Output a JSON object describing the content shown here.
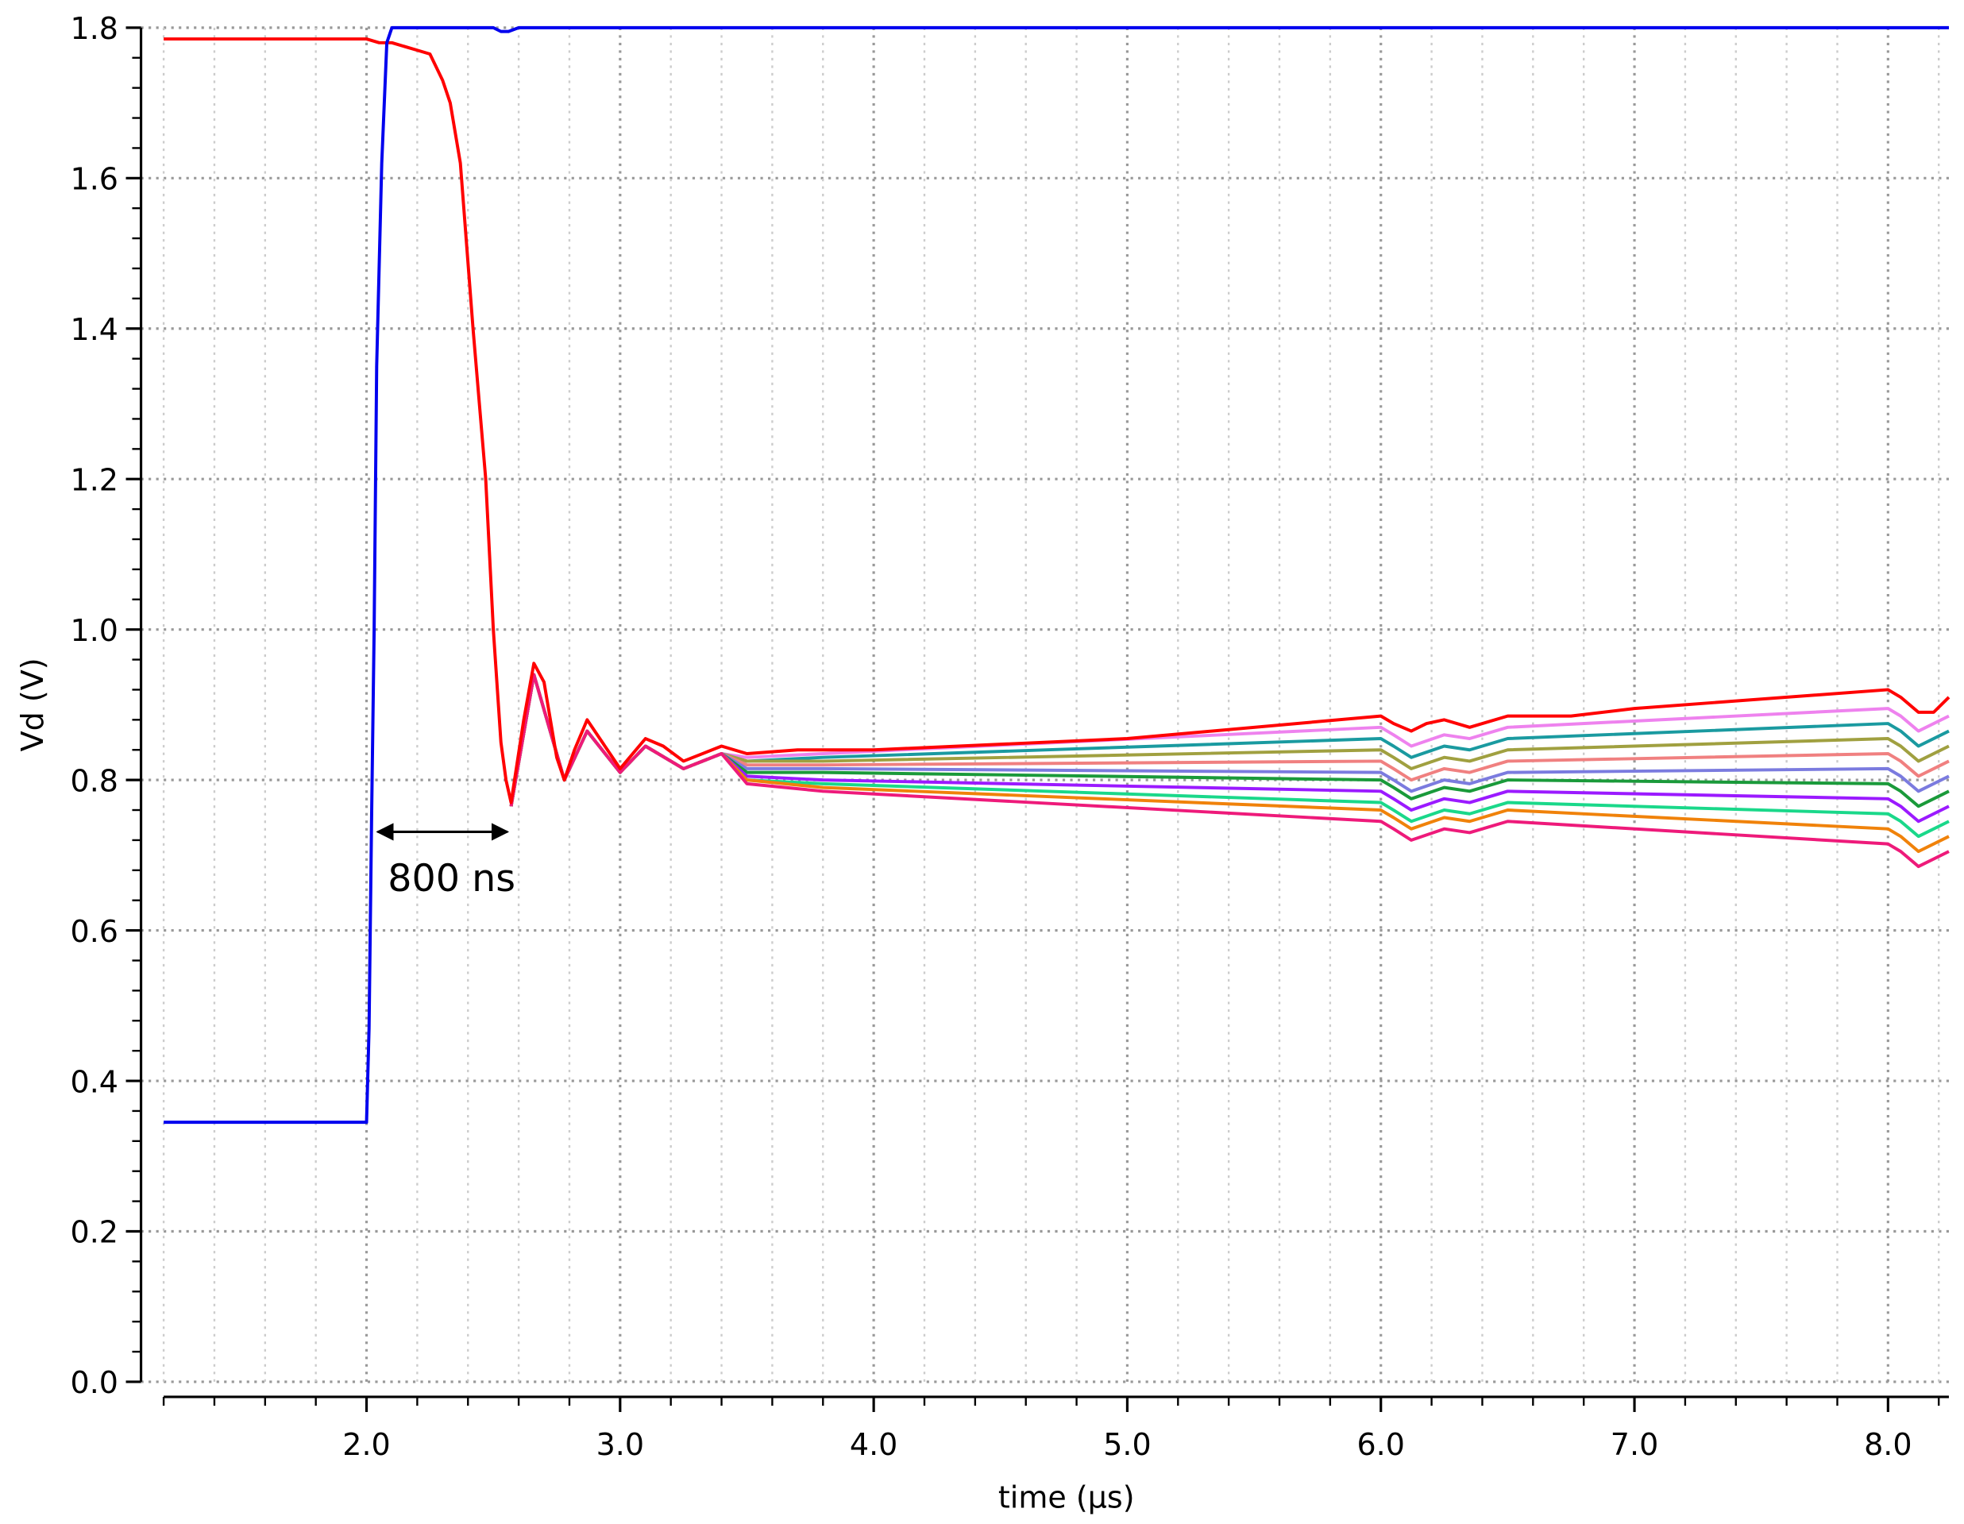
{
  "chart_data": {
    "type": "line",
    "xlabel": "time (µs)",
    "ylabel": "Vd (V)",
    "annotation": "800 ns",
    "xlim": [
      1.2,
      8.24
    ],
    "ylim": [
      0,
      1.8
    ],
    "grid": true,
    "xticks": [
      {
        "value": 2,
        "label": "2.0"
      },
      {
        "value": 3,
        "label": "3.0"
      },
      {
        "value": 4,
        "label": "4.0"
      },
      {
        "value": 5,
        "label": "5.0"
      },
      {
        "value": 6,
        "label": "6.0"
      },
      {
        "value": 7,
        "label": "7.0"
      },
      {
        "value": 8,
        "label": "8.0"
      }
    ],
    "xminorticks": [
      1.2,
      1.4,
      1.6,
      1.8,
      2.2,
      2.4,
      2.6,
      2.8,
      3.2,
      3.4,
      3.6,
      3.8,
      4.2,
      4.4,
      4.6,
      4.8,
      5.2,
      5.4,
      5.6,
      5.8,
      6.2,
      6.4,
      6.6,
      6.8,
      7.2,
      7.4,
      7.6,
      7.8,
      8.2
    ],
    "yticks": [
      {
        "value": 0,
        "label": "0.0"
      },
      {
        "value": 0.2,
        "label": "0.2"
      },
      {
        "value": 0.4,
        "label": "0.4"
      },
      {
        "value": 0.6,
        "label": "0.6"
      },
      {
        "value": 0.8,
        "label": "0.8"
      },
      {
        "value": 1,
        "label": "1.0"
      },
      {
        "value": 1.2,
        "label": "1.2"
      },
      {
        "value": 1.4,
        "label": "1.4"
      },
      {
        "value": 1.6,
        "label": "1.6"
      },
      {
        "value": 1.8,
        "label": "1.8"
      }
    ],
    "yminorticks": [
      0.04,
      0.08,
      0.12,
      0.16,
      0.24,
      0.28,
      0.32,
      0.36,
      0.44,
      0.48,
      0.52,
      0.56,
      0.64,
      0.68,
      0.72,
      0.76,
      0.84,
      0.88,
      0.92,
      0.96,
      1.04,
      1.08,
      1.12,
      1.16,
      1.24,
      1.28,
      1.32,
      1.36,
      1.44,
      1.48,
      1.52,
      1.56,
      1.64,
      1.68,
      1.72,
      1.76
    ],
    "series": [
      {
        "color": "#ee82ee",
        "x": [
          2.57,
          2.66,
          2.72,
          2.78,
          2.87,
          3.0,
          3.1,
          3.25,
          3.4,
          3.5,
          3.8,
          6.0,
          6.05,
          6.12,
          6.25,
          6.35,
          6.5,
          8.0,
          8.05,
          8.12,
          8.24
        ],
        "values": [
          0.765,
          0.94,
          0.87,
          0.8,
          0.865,
          0.81,
          0.845,
          0.815,
          0.835,
          0.83,
          0.835,
          0.87,
          0.86,
          0.845,
          0.86,
          0.855,
          0.87,
          0.895,
          0.885,
          0.865,
          0.885
        ]
      },
      {
        "color": "#1a9aa0",
        "x": [
          2.57,
          2.66,
          2.72,
          2.78,
          2.87,
          3.0,
          3.1,
          3.25,
          3.4,
          3.5,
          3.8,
          6.0,
          6.05,
          6.12,
          6.25,
          6.35,
          6.5,
          8.0,
          8.05,
          8.12,
          8.24
        ],
        "values": [
          0.765,
          0.94,
          0.87,
          0.8,
          0.865,
          0.81,
          0.845,
          0.815,
          0.835,
          0.825,
          0.83,
          0.855,
          0.845,
          0.83,
          0.845,
          0.84,
          0.855,
          0.875,
          0.865,
          0.845,
          0.865
        ]
      },
      {
        "color": "#a0a040",
        "x": [
          2.57,
          2.66,
          2.72,
          2.78,
          2.87,
          3.0,
          3.1,
          3.25,
          3.4,
          3.5,
          3.8,
          6.0,
          6.05,
          6.12,
          6.25,
          6.35,
          6.5,
          8.0,
          8.05,
          8.12,
          8.24
        ],
        "values": [
          0.765,
          0.94,
          0.87,
          0.8,
          0.865,
          0.81,
          0.845,
          0.815,
          0.835,
          0.825,
          0.825,
          0.84,
          0.83,
          0.815,
          0.83,
          0.825,
          0.84,
          0.855,
          0.845,
          0.825,
          0.845
        ]
      },
      {
        "color": "#f08080",
        "x": [
          2.57,
          2.66,
          2.72,
          2.78,
          2.87,
          3.0,
          3.1,
          3.25,
          3.4,
          3.5,
          3.8,
          6.0,
          6.05,
          6.12,
          6.25,
          6.35,
          6.5,
          8.0,
          8.05,
          8.12,
          8.24
        ],
        "values": [
          0.765,
          0.94,
          0.87,
          0.8,
          0.865,
          0.81,
          0.845,
          0.815,
          0.835,
          0.82,
          0.82,
          0.825,
          0.815,
          0.8,
          0.815,
          0.81,
          0.825,
          0.835,
          0.825,
          0.805,
          0.825
        ]
      },
      {
        "color": "#7b7bdf",
        "x": [
          2.57,
          2.66,
          2.72,
          2.78,
          2.87,
          3.0,
          3.1,
          3.25,
          3.4,
          3.5,
          3.8,
          6.0,
          6.05,
          6.12,
          6.25,
          6.35,
          6.5,
          8.0,
          8.05,
          8.12,
          8.24
        ],
        "values": [
          0.765,
          0.94,
          0.87,
          0.8,
          0.865,
          0.81,
          0.845,
          0.815,
          0.835,
          0.815,
          0.815,
          0.81,
          0.8,
          0.785,
          0.8,
          0.795,
          0.81,
          0.815,
          0.805,
          0.785,
          0.805
        ]
      },
      {
        "color": "#1a9a3a",
        "x": [
          2.57,
          2.66,
          2.72,
          2.78,
          2.87,
          3.0,
          3.1,
          3.25,
          3.4,
          3.5,
          3.8,
          6.0,
          6.05,
          6.12,
          6.25,
          6.35,
          6.5,
          8.0,
          8.05,
          8.12,
          8.24
        ],
        "values": [
          0.765,
          0.94,
          0.87,
          0.8,
          0.865,
          0.81,
          0.845,
          0.815,
          0.835,
          0.81,
          0.81,
          0.8,
          0.79,
          0.775,
          0.79,
          0.785,
          0.8,
          0.795,
          0.785,
          0.765,
          0.785
        ]
      },
      {
        "color": "#9b1aff",
        "x": [
          2.57,
          2.66,
          2.72,
          2.78,
          2.87,
          3.0,
          3.1,
          3.25,
          3.4,
          3.5,
          3.8,
          6.0,
          6.05,
          6.12,
          6.25,
          6.35,
          6.5,
          8.0,
          8.05,
          8.12,
          8.24
        ],
        "values": [
          0.765,
          0.94,
          0.87,
          0.8,
          0.865,
          0.81,
          0.845,
          0.815,
          0.835,
          0.805,
          0.8,
          0.785,
          0.775,
          0.76,
          0.775,
          0.77,
          0.785,
          0.775,
          0.765,
          0.745,
          0.765
        ]
      },
      {
        "color": "#1ad88a",
        "x": [
          2.57,
          2.66,
          2.72,
          2.78,
          2.87,
          3.0,
          3.1,
          3.25,
          3.4,
          3.5,
          3.8,
          6.0,
          6.05,
          6.12,
          6.25,
          6.35,
          6.5,
          8.0,
          8.05,
          8.12,
          8.24
        ],
        "values": [
          0.765,
          0.94,
          0.87,
          0.8,
          0.865,
          0.81,
          0.845,
          0.815,
          0.835,
          0.8,
          0.795,
          0.77,
          0.76,
          0.745,
          0.76,
          0.755,
          0.77,
          0.755,
          0.745,
          0.725,
          0.745
        ]
      },
      {
        "color": "#f0820a",
        "x": [
          2.57,
          2.66,
          2.72,
          2.78,
          2.87,
          3.0,
          3.1,
          3.25,
          3.4,
          3.5,
          3.8,
          6.0,
          6.05,
          6.12,
          6.25,
          6.35,
          6.5,
          8.0,
          8.05,
          8.12,
          8.24
        ],
        "values": [
          0.765,
          0.94,
          0.87,
          0.8,
          0.865,
          0.81,
          0.845,
          0.815,
          0.835,
          0.8,
          0.79,
          0.76,
          0.75,
          0.735,
          0.75,
          0.745,
          0.76,
          0.735,
          0.725,
          0.705,
          0.725
        ]
      },
      {
        "color": "#ee1a7a",
        "x": [
          2.57,
          2.66,
          2.72,
          2.78,
          2.87,
          3.0,
          3.1,
          3.25,
          3.4,
          3.5,
          3.8,
          6.0,
          6.05,
          6.12,
          6.25,
          6.35,
          6.5,
          8.0,
          8.05,
          8.12,
          8.24
        ],
        "values": [
          0.765,
          0.94,
          0.87,
          0.8,
          0.865,
          0.81,
          0.845,
          0.815,
          0.835,
          0.795,
          0.785,
          0.745,
          0.735,
          0.72,
          0.735,
          0.73,
          0.745,
          0.715,
          0.705,
          0.685,
          0.705
        ]
      },
      {
        "color": "#ff0000",
        "x": [
          1.2,
          2.0,
          2.05,
          2.1,
          2.2,
          2.25,
          2.3,
          2.33,
          2.37,
          2.42,
          2.47,
          2.5,
          2.53,
          2.55,
          2.57,
          2.62,
          2.66,
          2.7,
          2.75,
          2.78,
          2.82,
          2.87,
          2.95,
          3.0,
          3.1,
          3.17,
          3.25,
          3.4,
          3.5,
          3.7,
          4.0,
          5.0,
          6.0,
          6.05,
          6.12,
          6.18,
          6.25,
          6.35,
          6.5,
          6.75,
          7.0,
          8.0,
          8.05,
          8.12,
          8.18,
          8.24
        ],
        "values": [
          1.785,
          1.785,
          1.78,
          1.78,
          1.77,
          1.765,
          1.73,
          1.7,
          1.62,
          1.4,
          1.2,
          1.0,
          0.85,
          0.8,
          0.77,
          0.88,
          0.955,
          0.93,
          0.83,
          0.8,
          0.84,
          0.88,
          0.84,
          0.815,
          0.855,
          0.845,
          0.825,
          0.845,
          0.835,
          0.84,
          0.84,
          0.855,
          0.885,
          0.875,
          0.865,
          0.875,
          0.88,
          0.87,
          0.885,
          0.885,
          0.895,
          0.92,
          0.91,
          0.89,
          0.89,
          0.91
        ]
      },
      {
        "color": "#0000ee",
        "x": [
          1.2,
          2.0,
          2.01,
          2.02,
          2.03,
          2.04,
          2.06,
          2.08,
          2.1,
          2.5,
          2.53,
          2.56,
          2.6,
          8.24
        ],
        "values": [
          0.345,
          0.345,
          0.47,
          0.75,
          1.0,
          1.35,
          1.62,
          1.78,
          1.8,
          1.8,
          1.795,
          1.795,
          1.8,
          1.8
        ]
      }
    ]
  }
}
